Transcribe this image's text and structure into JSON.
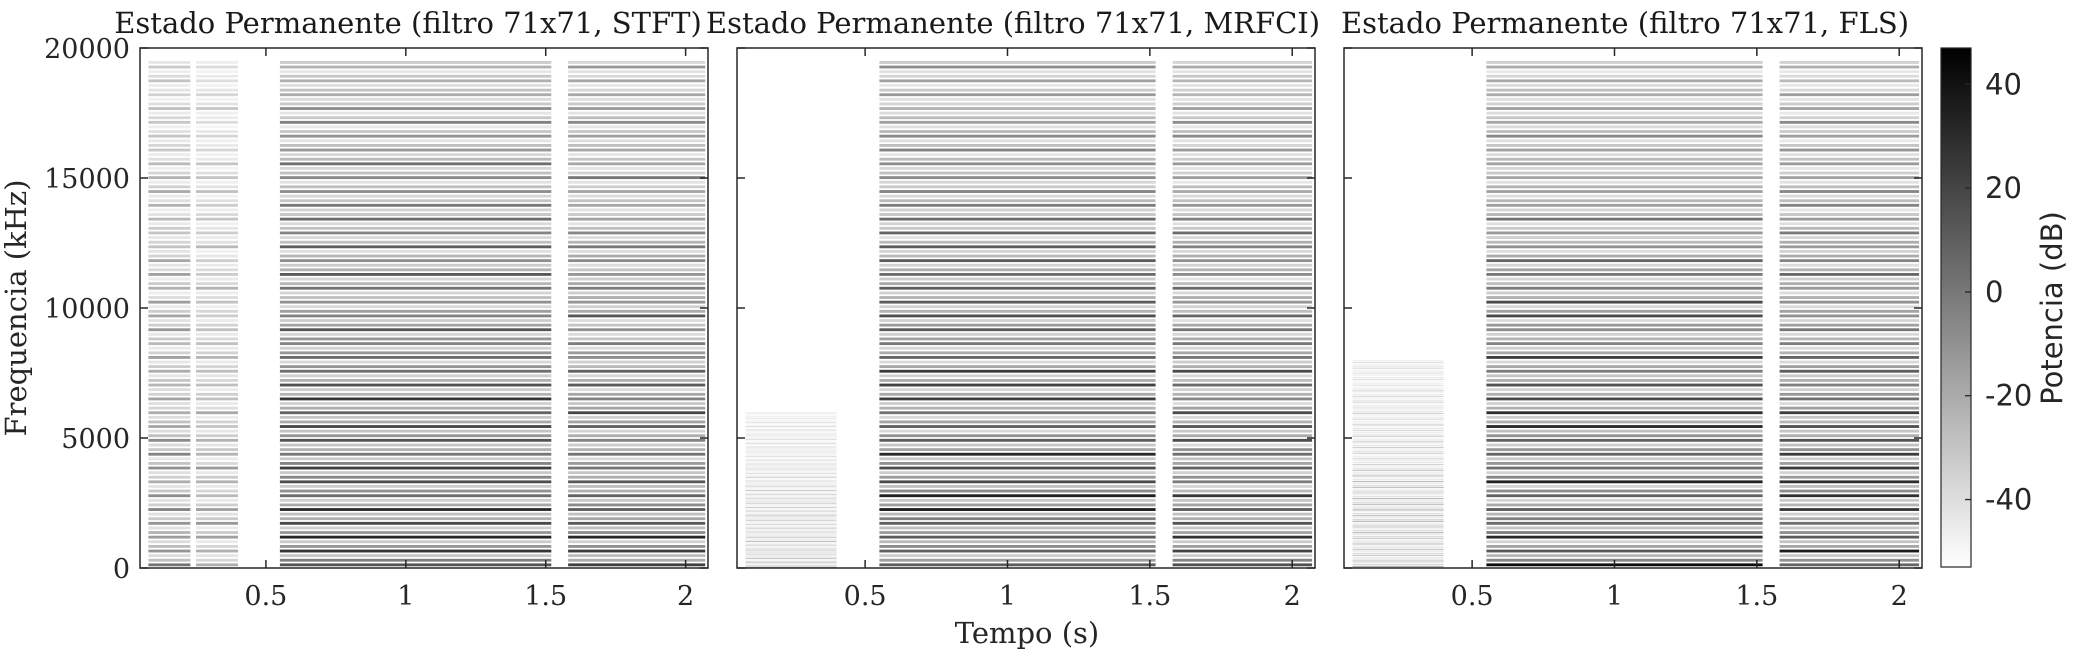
{
  "figure": {
    "shared_xlabel": "Tempo (s)",
    "shared_ylabel": "Frequencia (kHz)",
    "colorbar": {
      "label": "Potencia (dB)",
      "ticks": [
        40,
        20,
        0,
        -20,
        -40
      ],
      "tick_labels": [
        "40",
        "20",
        "0",
        "-20",
        "-40"
      ],
      "range": [
        -53,
        47
      ],
      "colormap": "gray-reversed"
    }
  },
  "chart_data": [
    {
      "type": "heatmap",
      "title": "Estado Permanente (filtro 71x71, STFT)",
      "xlabel": "Tempo (s)",
      "ylabel": "Frequencia (kHz)",
      "xlim": [
        0.05,
        2.08
      ],
      "ylim": [
        0,
        20000
      ],
      "xticks": [
        0.5,
        1,
        1.5,
        2
      ],
      "xtick_labels": [
        "0.5",
        "1",
        "1.5",
        "2"
      ],
      "yticks": [
        0,
        5000,
        10000,
        15000,
        20000
      ],
      "ytick_labels": [
        "0",
        "5000",
        "10000",
        "15000",
        "20000"
      ],
      "segments": [
        {
          "start": 0.08,
          "end": 0.23,
          "intensity": 0.45,
          "max_freq": 19500
        },
        {
          "start": 0.25,
          "end": 0.4,
          "intensity": 0.35,
          "max_freq": 19500
        },
        {
          "start": 0.55,
          "end": 1.52,
          "intensity": 0.8,
          "max_freq": 19500
        },
        {
          "start": 1.58,
          "end": 2.07,
          "intensity": 0.75,
          "max_freq": 19500
        }
      ]
    },
    {
      "type": "heatmap",
      "title": "Estado Permanente (filtro 71x71, MRFCI)",
      "xlabel": "Tempo (s)",
      "ylabel": "",
      "xlim": [
        0.05,
        2.08
      ],
      "ylim": [
        0,
        20000
      ],
      "xticks": [
        0.5,
        1,
        1.5,
        2
      ],
      "xtick_labels": [
        "0.5",
        "1",
        "1.5",
        "2"
      ],
      "yticks": [
        0,
        5000,
        10000,
        15000,
        20000
      ],
      "segments": [
        {
          "start": 0.08,
          "end": 0.4,
          "intensity": 0.25,
          "max_freq": 6000
        },
        {
          "start": 0.55,
          "end": 1.52,
          "intensity": 0.78,
          "max_freq": 19500
        },
        {
          "start": 1.58,
          "end": 2.07,
          "intensity": 0.72,
          "max_freq": 19500
        }
      ]
    },
    {
      "type": "heatmap",
      "title": "Estado Permanente (filtro 71x71, FLS)",
      "xlabel": "Tempo (s)",
      "ylabel": "",
      "xlim": [
        0.05,
        2.08
      ],
      "ylim": [
        0,
        20000
      ],
      "xticks": [
        0.5,
        1,
        1.5,
        2
      ],
      "xtick_labels": [
        "0.5",
        "1",
        "1.5",
        "2"
      ],
      "yticks": [
        0,
        5000,
        10000,
        15000,
        20000
      ],
      "segments": [
        {
          "start": 0.08,
          "end": 0.4,
          "intensity": 0.28,
          "max_freq": 8000
        },
        {
          "start": 0.55,
          "end": 1.52,
          "intensity": 0.8,
          "max_freq": 19500
        },
        {
          "start": 1.58,
          "end": 2.07,
          "intensity": 0.74,
          "max_freq": 19500
        }
      ]
    }
  ]
}
